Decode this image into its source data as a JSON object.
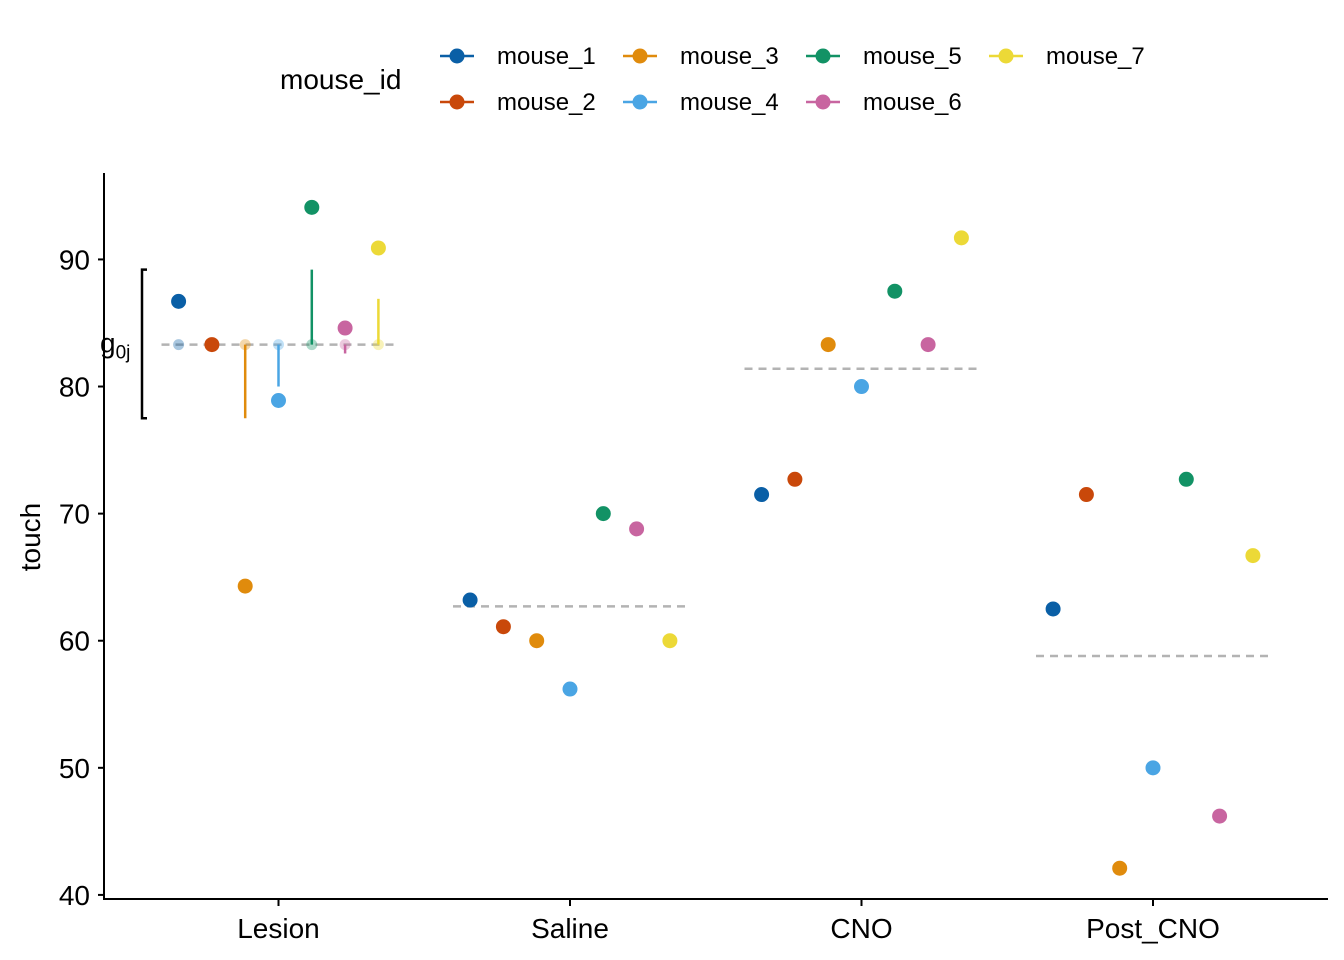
{
  "chart_data": {
    "type": "scatter",
    "title": "",
    "xlabel": "",
    "ylabel": "touch",
    "categories": [
      "Lesion",
      "Saline",
      "CNO",
      "Post_CNO"
    ],
    "ylim": [
      39.6,
      96.8
    ],
    "yticks": [
      40,
      50,
      60,
      70,
      80,
      90
    ],
    "grid": false,
    "legend": {
      "title": "mouse_id",
      "position": "top"
    },
    "series": [
      {
        "name": "mouse_1",
        "color": "#0a5fa6",
        "values": [
          86.7,
          63.2,
          71.5,
          62.5
        ]
      },
      {
        "name": "mouse_2",
        "color": "#c9480a",
        "values": [
          83.3,
          61.1,
          72.7,
          71.5
        ]
      },
      {
        "name": "mouse_3",
        "color": "#e08b0c",
        "values": [
          64.3,
          60.0,
          83.3,
          42.1
        ]
      },
      {
        "name": "mouse_4",
        "color": "#4aa5e4",
        "values": [
          78.9,
          56.2,
          80.0,
          50.0
        ]
      },
      {
        "name": "mouse_5",
        "color": "#129265",
        "values": [
          94.1,
          70.0,
          87.5,
          72.7
        ]
      },
      {
        "name": "mouse_6",
        "color": "#c865a0",
        "values": [
          84.6,
          68.8,
          83.3,
          46.2
        ]
      },
      {
        "name": "mouse_7",
        "color": "#ecd937",
        "values": [
          90.9,
          60.0,
          91.7,
          66.7
        ]
      }
    ],
    "group_means": [
      83.3,
      62.7,
      81.4,
      58.8
    ],
    "mean_line_color": "#b3b3b3",
    "annotation": {
      "label": "g",
      "subscript": "0j",
      "category": "Lesion",
      "bracket_range": [
        77.5,
        89.2
      ],
      "segment_ends": [
        83.3,
        83.3,
        77.5,
        80.0,
        89.2,
        82.6,
        86.9
      ]
    }
  }
}
